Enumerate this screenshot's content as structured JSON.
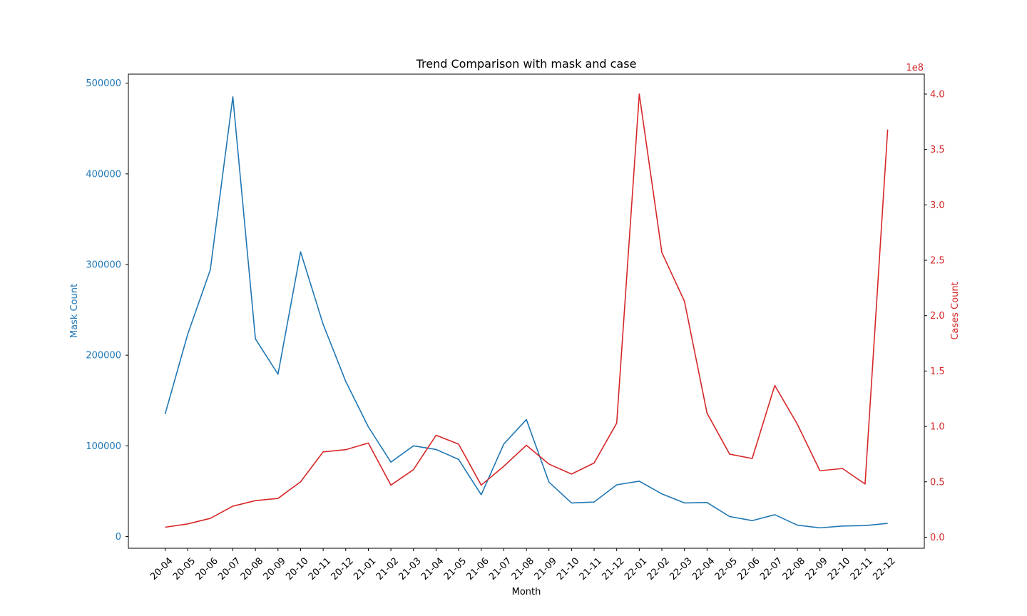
{
  "chart_data": {
    "type": "line",
    "title": "Trend Comparison with mask and case",
    "xlabel": "Month",
    "ylabel_left": "Mask Count",
    "ylabel_right": "Cases Count",
    "right_offset_text": "1e8",
    "categories": [
      "20-04",
      "20-05",
      "20-06",
      "20-07",
      "20-08",
      "20-09",
      "20-10",
      "20-11",
      "20-12",
      "21-01",
      "21-02",
      "21-03",
      "21-04",
      "21-05",
      "21-06",
      "21-07",
      "21-08",
      "21-09",
      "21-10",
      "21-11",
      "21-12",
      "22-01",
      "22-02",
      "22-03",
      "22-04",
      "22-05",
      "22-06",
      "22-07",
      "22-08",
      "22-09",
      "22-10",
      "22-11",
      "22-12"
    ],
    "left_ylim": [
      -13000,
      510000
    ],
    "left_ticks": [
      0,
      100000,
      200000,
      300000,
      400000,
      500000
    ],
    "left_tick_labels": [
      "0",
      "100000",
      "200000",
      "300000",
      "400000",
      "500000"
    ],
    "right_ylim": [
      -0.1,
      4.18
    ],
    "right_ticks": [
      0.0,
      0.5,
      1.0,
      1.5,
      2.0,
      2.5,
      3.0,
      3.5,
      4.0
    ],
    "right_tick_labels": [
      "0.0",
      "0.5",
      "1.0",
      "1.5",
      "2.0",
      "2.5",
      "3.0",
      "3.5",
      "4.0"
    ],
    "grid": false,
    "colors": {
      "mask": "#1f77b4",
      "cases": "#d62728",
      "axis": "#000000"
    },
    "series": [
      {
        "axis": "left",
        "values": [
          135000,
          223000,
          294000,
          485000,
          218000,
          179000,
          314000,
          234000,
          171000,
          121000,
          82000,
          100000,
          96000,
          85000,
          46000,
          102000,
          129000,
          60000,
          37000,
          38000,
          57000,
          61000,
          47000,
          37000,
          37500,
          22000,
          17500,
          24000,
          12500,
          9500,
          11500,
          12000,
          14500
        ]
      },
      {
        "axis": "right",
        "values": [
          0.09,
          0.12,
          0.17,
          0.28,
          0.33,
          0.35,
          0.5,
          0.77,
          0.79,
          0.85,
          0.47,
          0.61,
          0.92,
          0.84,
          0.47,
          0.64,
          0.83,
          0.66,
          0.57,
          0.67,
          1.03,
          4.0,
          2.57,
          2.13,
          1.12,
          0.75,
          0.71,
          1.37,
          1.02,
          0.6,
          0.62,
          0.48,
          3.68
        ]
      }
    ]
  }
}
